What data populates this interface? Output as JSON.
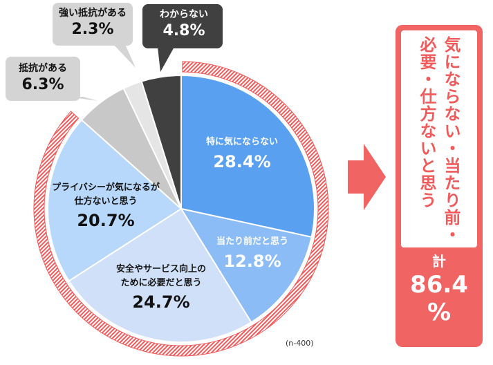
{
  "chart_data": {
    "type": "pie",
    "sample_note": "(n-400)",
    "slices": [
      {
        "label": "特に気にならない",
        "value": 28.4,
        "value_text": "28.4%",
        "color": "#5aa0f0"
      },
      {
        "label": "当たり前だと思う",
        "value": 12.8,
        "value_text": "12.8%",
        "color": "#8cbcf5"
      },
      {
        "label": "安全やサービス向上のために必要だと思う",
        "label_lines": [
          "安全やサービス向上の",
          "ために必要だと思う"
        ],
        "value": 24.7,
        "value_text": "24.7%",
        "color": "#cfe0f8"
      },
      {
        "label": "プライバシーが気になるが仕方ないと思う",
        "label_lines": [
          "プライバシーが気になるが",
          "仕方ないと思う"
        ],
        "value": 20.7,
        "value_text": "20.7%",
        "color": "#b7d8fb"
      },
      {
        "label": "抵抗がある",
        "value": 6.3,
        "value_text": "6.3%",
        "color": "#c8c8c8"
      },
      {
        "label": "強い抵抗がある",
        "value": 2.3,
        "value_text": "2.3%",
        "color": "#e5e5e5"
      },
      {
        "label": "わからない",
        "value": 4.8,
        "value_text": "4.8%",
        "color": "#404040"
      }
    ],
    "highlight_group": {
      "text": "気にならない・当たり前・必要・仕方ないと思う",
      "total_label": "計",
      "total_value": 86.4,
      "total_text_line1": "86.4",
      "total_text_line2": "%",
      "color": "#f06464"
    }
  }
}
